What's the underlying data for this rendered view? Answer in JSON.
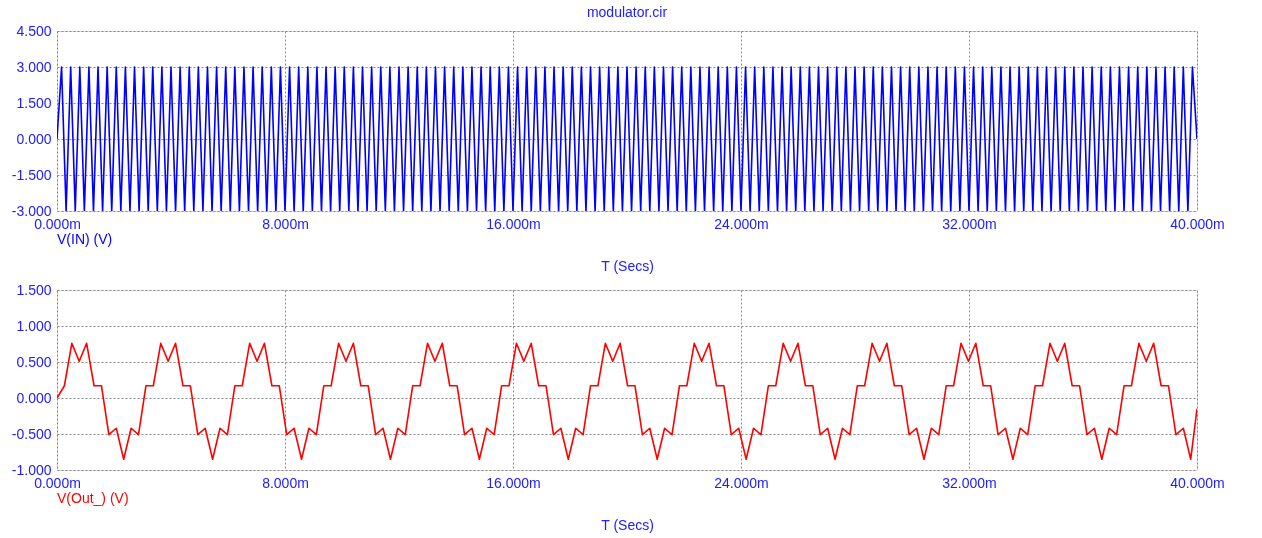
{
  "chart_data": [
    {
      "type": "line",
      "title": "modulator.cir",
      "xlabel": "T (Secs)",
      "grid": true,
      "marker": "none",
      "line_style": "solid",
      "xlim": [
        0,
        40
      ],
      "xticks": [
        {
          "value": 0,
          "label": "0.000m"
        },
        {
          "value": 8,
          "label": "8.000m"
        },
        {
          "value": 16,
          "label": "16.000m"
        },
        {
          "value": 24,
          "label": "24.000m"
        },
        {
          "value": 32,
          "label": "32.000m"
        },
        {
          "value": 40,
          "label": "40.000m"
        }
      ],
      "ylim": [
        -3,
        4.5
      ],
      "yticks": [
        {
          "value": -3,
          "label": "-3.000"
        },
        {
          "value": -1.5,
          "label": "-1.500"
        },
        {
          "value": 0,
          "label": "0.000"
        },
        {
          "value": 1.5,
          "label": "1.500"
        },
        {
          "value": 3,
          "label": "3.000"
        },
        {
          "value": 4.5,
          "label": "4.500"
        }
      ],
      "x": [
        0,
        0.16,
        0.32,
        0.48,
        0.64,
        0.8,
        0.96,
        1.12,
        1.28,
        1.44,
        1.6,
        1.76,
        1.92,
        2.08,
        2.24,
        2.4,
        2.56,
        2.72,
        2.88,
        3.04,
        3.2,
        3.36,
        3.52,
        3.68,
        3.84,
        4,
        4.16,
        4.32,
        4.48,
        4.64,
        4.8,
        4.96,
        5.12,
        5.28,
        5.44,
        5.6,
        5.76,
        5.92,
        6.08,
        6.24,
        6.4,
        6.56,
        6.72,
        6.88,
        7.04,
        7.2,
        7.36,
        7.52,
        7.68,
        7.84,
        8,
        8.16,
        8.32,
        8.48,
        8.64,
        8.8,
        8.96,
        9.12,
        9.28,
        9.44,
        9.6,
        9.76,
        9.92,
        10.08,
        10.24,
        10.4,
        10.56,
        10.72,
        10.88,
        11.04,
        11.2,
        11.36,
        11.52,
        11.68,
        11.84,
        12,
        12.16,
        12.32,
        12.48,
        12.64,
        12.8,
        12.96,
        13.12,
        13.28,
        13.44,
        13.6,
        13.76,
        13.92,
        14.08,
        14.24,
        14.4,
        14.56,
        14.72,
        14.88,
        15.04,
        15.2,
        15.36,
        15.52,
        15.68,
        15.84,
        16,
        16.16,
        16.32,
        16.48,
        16.64,
        16.8,
        16.96,
        17.12,
        17.28,
        17.44,
        17.6,
        17.76,
        17.92,
        18.08,
        18.24,
        18.4,
        18.56,
        18.72,
        18.88,
        19.04,
        19.2,
        19.36,
        19.52,
        19.68,
        19.84,
        20,
        20.16,
        20.32,
        20.48,
        20.64,
        20.8,
        20.96,
        21.12,
        21.28,
        21.44,
        21.6,
        21.76,
        21.92,
        22.08,
        22.24,
        22.4,
        22.56,
        22.72,
        22.88,
        23.04,
        23.2,
        23.36,
        23.52,
        23.68,
        23.84,
        24,
        24.16,
        24.32,
        24.48,
        24.64,
        24.8,
        24.96,
        25.12,
        25.28,
        25.44,
        25.6,
        25.76,
        25.92,
        26.08,
        26.24,
        26.4,
        26.56,
        26.72,
        26.88,
        27.04,
        27.2,
        27.36,
        27.52,
        27.68,
        27.84,
        28,
        28.16,
        28.32,
        28.48,
        28.64,
        28.8,
        28.96,
        29.12,
        29.28,
        29.44,
        29.6,
        29.76,
        29.92,
        30.08,
        30.24,
        30.4,
        30.56,
        30.72,
        30.88,
        31.04,
        31.2,
        31.36,
        31.52,
        31.68,
        31.84,
        32,
        32.16,
        32.32,
        32.48,
        32.64,
        32.8,
        32.96,
        33.12,
        33.28,
        33.44,
        33.6,
        33.76,
        33.92,
        34.08,
        34.24,
        34.4,
        34.56,
        34.72,
        34.88,
        35.04,
        35.2,
        35.36,
        35.52,
        35.68,
        35.84,
        36,
        36.16,
        36.32,
        36.48,
        36.64,
        36.8,
        36.96,
        37.12,
        37.28,
        37.44,
        37.6,
        37.76,
        37.92,
        38.08,
        38.24,
        38.4,
        38.56,
        38.72,
        38.88,
        39.04,
        39.2,
        39.36,
        39.52,
        39.68,
        39.84,
        40
      ],
      "series": [
        {
          "name": "V(IN) (V)",
          "color": "#0000ff",
          "values": [
            0,
            3,
            -3,
            3,
            -3,
            3,
            -3,
            3,
            -3,
            3,
            -3,
            3,
            -3,
            3,
            -3,
            3,
            -3,
            3,
            -3,
            3,
            -3,
            3,
            -3,
            3,
            -3,
            3,
            -3,
            3,
            -3,
            3,
            -3,
            3,
            -3,
            3,
            -3,
            3,
            -3,
            3,
            -3,
            3,
            -3,
            3,
            -3,
            3,
            -3,
            3,
            -3,
            3,
            -3,
            3,
            -3,
            3,
            -3,
            3,
            -3,
            3,
            -3,
            3,
            -3,
            3,
            -3,
            3,
            -3,
            3,
            -3,
            3,
            -3,
            3,
            -3,
            3,
            -3,
            3,
            -3,
            3,
            -3,
            3,
            -3,
            3,
            -3,
            3,
            -3,
            3,
            -3,
            3,
            -3,
            3,
            -3,
            3,
            -3,
            3,
            -3,
            3,
            -3,
            3,
            -3,
            3,
            -3,
            3,
            -3,
            3,
            -3,
            3,
            -3,
            3,
            -3,
            3,
            -3,
            3,
            -3,
            3,
            -3,
            3,
            -3,
            3,
            -3,
            3,
            -3,
            3,
            -3,
            3,
            -3,
            3,
            -3,
            3,
            -3,
            3,
            -3,
            3,
            -3,
            3,
            -3,
            3,
            -3,
            3,
            -3,
            3,
            -3,
            3,
            -3,
            3,
            -3,
            3,
            -3,
            3,
            -3,
            3,
            -3,
            3,
            -3,
            3,
            -3,
            3,
            -3,
            3,
            -3,
            3,
            -3,
            3,
            -3,
            3,
            -3,
            3,
            -3,
            3,
            -3,
            3,
            -3,
            3,
            -3,
            3,
            -3,
            3,
            -3,
            3,
            -3,
            3,
            -3,
            3,
            -3,
            3,
            -3,
            3,
            -3,
            3,
            -3,
            3,
            -3,
            3,
            -3,
            3,
            -3,
            3,
            -3,
            3,
            -3,
            3,
            -3,
            3,
            -3,
            3,
            -3,
            3,
            -3,
            3,
            -3,
            3,
            -3,
            3,
            -3,
            3,
            -3,
            3,
            -3,
            3,
            -3,
            3,
            -3,
            3,
            -3,
            3,
            -3,
            3,
            -3,
            3,
            -3,
            3,
            -3,
            3,
            -3,
            3,
            -3,
            3,
            -3,
            3,
            -3,
            3,
            -3,
            3,
            -3,
            3,
            -3,
            3,
            -3,
            3,
            -3,
            3,
            -3,
            3,
            -3,
            3,
            0
          ]
        }
      ]
    },
    {
      "type": "line",
      "xlabel": "T (Secs)",
      "grid": true,
      "marker": "none",
      "line_style": "solid",
      "xlim": [
        0,
        40
      ],
      "xticks": [
        {
          "value": 0,
          "label": "0.000m"
        },
        {
          "value": 8,
          "label": "8.000m"
        },
        {
          "value": 16,
          "label": "16.000m"
        },
        {
          "value": 24,
          "label": "24.000m"
        },
        {
          "value": 32,
          "label": "32.000m"
        },
        {
          "value": 40,
          "label": "40.000m"
        }
      ],
      "ylim": [
        -1,
        1.5
      ],
      "yticks": [
        {
          "value": -1,
          "label": "-1.000"
        },
        {
          "value": -0.5,
          "label": "-0.500"
        },
        {
          "value": 0,
          "label": "0.000"
        },
        {
          "value": 0.5,
          "label": "0.500"
        },
        {
          "value": 1,
          "label": "1.000"
        },
        {
          "value": 1.5,
          "label": "1.500"
        }
      ],
      "x": [
        0,
        0.26,
        0.52,
        0.78,
        1.04,
        1.3,
        1.56,
        1.82,
        2.08,
        2.34,
        2.6,
        2.86,
        3.12,
        3.38,
        3.64,
        3.9,
        4.16,
        4.42,
        4.68,
        4.94,
        5.2,
        5.46,
        5.72,
        5.98,
        6.24,
        6.5,
        6.76,
        7.02,
        7.28,
        7.54,
        7.8,
        8.06,
        8.32,
        8.58,
        8.84,
        9.1,
        9.36,
        9.62,
        9.88,
        10.14,
        10.4,
        10.66,
        10.92,
        11.18,
        11.44,
        11.7,
        11.96,
        12.22,
        12.48,
        12.74,
        13,
        13.26,
        13.52,
        13.78,
        14.04,
        14.3,
        14.56,
        14.82,
        15.08,
        15.34,
        15.6,
        15.86,
        16.12,
        16.38,
        16.64,
        16.9,
        17.16,
        17.42,
        17.68,
        17.94,
        18.2,
        18.46,
        18.72,
        18.98,
        19.24,
        19.5,
        19.76,
        20.02,
        20.28,
        20.54,
        20.8,
        21.06,
        21.32,
        21.58,
        21.84,
        22.1,
        22.36,
        22.62,
        22.88,
        23.14,
        23.4,
        23.66,
        23.92,
        24.18,
        24.44,
        24.7,
        24.96,
        25.22,
        25.48,
        25.74,
        26,
        26.26,
        26.52,
        26.78,
        27.04,
        27.3,
        27.56,
        27.82,
        28.08,
        28.34,
        28.6,
        28.86,
        29.12,
        29.38,
        29.64,
        29.9,
        30.16,
        30.42,
        30.68,
        30.94,
        31.2,
        31.46,
        31.72,
        31.98,
        32.24,
        32.5,
        32.76,
        33.02,
        33.28,
        33.54,
        33.8,
        34.06,
        34.32,
        34.58,
        34.84,
        35.1,
        35.36,
        35.62,
        35.88,
        36.14,
        36.4,
        36.66,
        36.92,
        37.18,
        37.44,
        37.7,
        37.96,
        38.22,
        38.48,
        38.74,
        39,
        39.26,
        39.52,
        39.78,
        40
      ],
      "series": [
        {
          "name": "V(Out_) (V)",
          "color": "#ff0000",
          "values": [
            0,
            0.17,
            0.76,
            0.51,
            0.76,
            0.17,
            0.17,
            -0.51,
            -0.42,
            -0.85,
            -0.42,
            -0.51,
            0.17,
            0.17,
            0.76,
            0.51,
            0.76,
            0.17,
            0.17,
            -0.51,
            -0.42,
            -0.85,
            -0.42,
            -0.51,
            0.17,
            0.17,
            0.76,
            0.51,
            0.76,
            0.17,
            0.17,
            -0.51,
            -0.42,
            -0.85,
            -0.42,
            -0.51,
            0.17,
            0.17,
            0.76,
            0.51,
            0.76,
            0.17,
            0.17,
            -0.51,
            -0.42,
            -0.85,
            -0.42,
            -0.51,
            0.17,
            0.17,
            0.76,
            0.51,
            0.76,
            0.17,
            0.17,
            -0.51,
            -0.42,
            -0.85,
            -0.42,
            -0.51,
            0.17,
            0.17,
            0.76,
            0.51,
            0.76,
            0.17,
            0.17,
            -0.51,
            -0.42,
            -0.85,
            -0.42,
            -0.51,
            0.17,
            0.17,
            0.76,
            0.51,
            0.76,
            0.17,
            0.17,
            -0.51,
            -0.42,
            -0.85,
            -0.42,
            -0.51,
            0.17,
            0.17,
            0.76,
            0.51,
            0.76,
            0.17,
            0.17,
            -0.51,
            -0.42,
            -0.85,
            -0.42,
            -0.51,
            0.17,
            0.17,
            0.76,
            0.51,
            0.76,
            0.17,
            0.17,
            -0.51,
            -0.42,
            -0.85,
            -0.42,
            -0.51,
            0.17,
            0.17,
            0.76,
            0.51,
            0.76,
            0.17,
            0.17,
            -0.51,
            -0.42,
            -0.85,
            -0.42,
            -0.51,
            0.17,
            0.17,
            0.76,
            0.51,
            0.76,
            0.17,
            0.17,
            -0.51,
            -0.42,
            -0.85,
            -0.42,
            -0.51,
            0.17,
            0.17,
            0.76,
            0.51,
            0.76,
            0.17,
            0.17,
            -0.51,
            -0.42,
            -0.85,
            -0.42,
            -0.51,
            0.17,
            0.17,
            0.76,
            0.51,
            0.76,
            0.17,
            0.17,
            -0.51,
            -0.42,
            -0.85,
            -0.15
          ]
        }
      ]
    }
  ]
}
